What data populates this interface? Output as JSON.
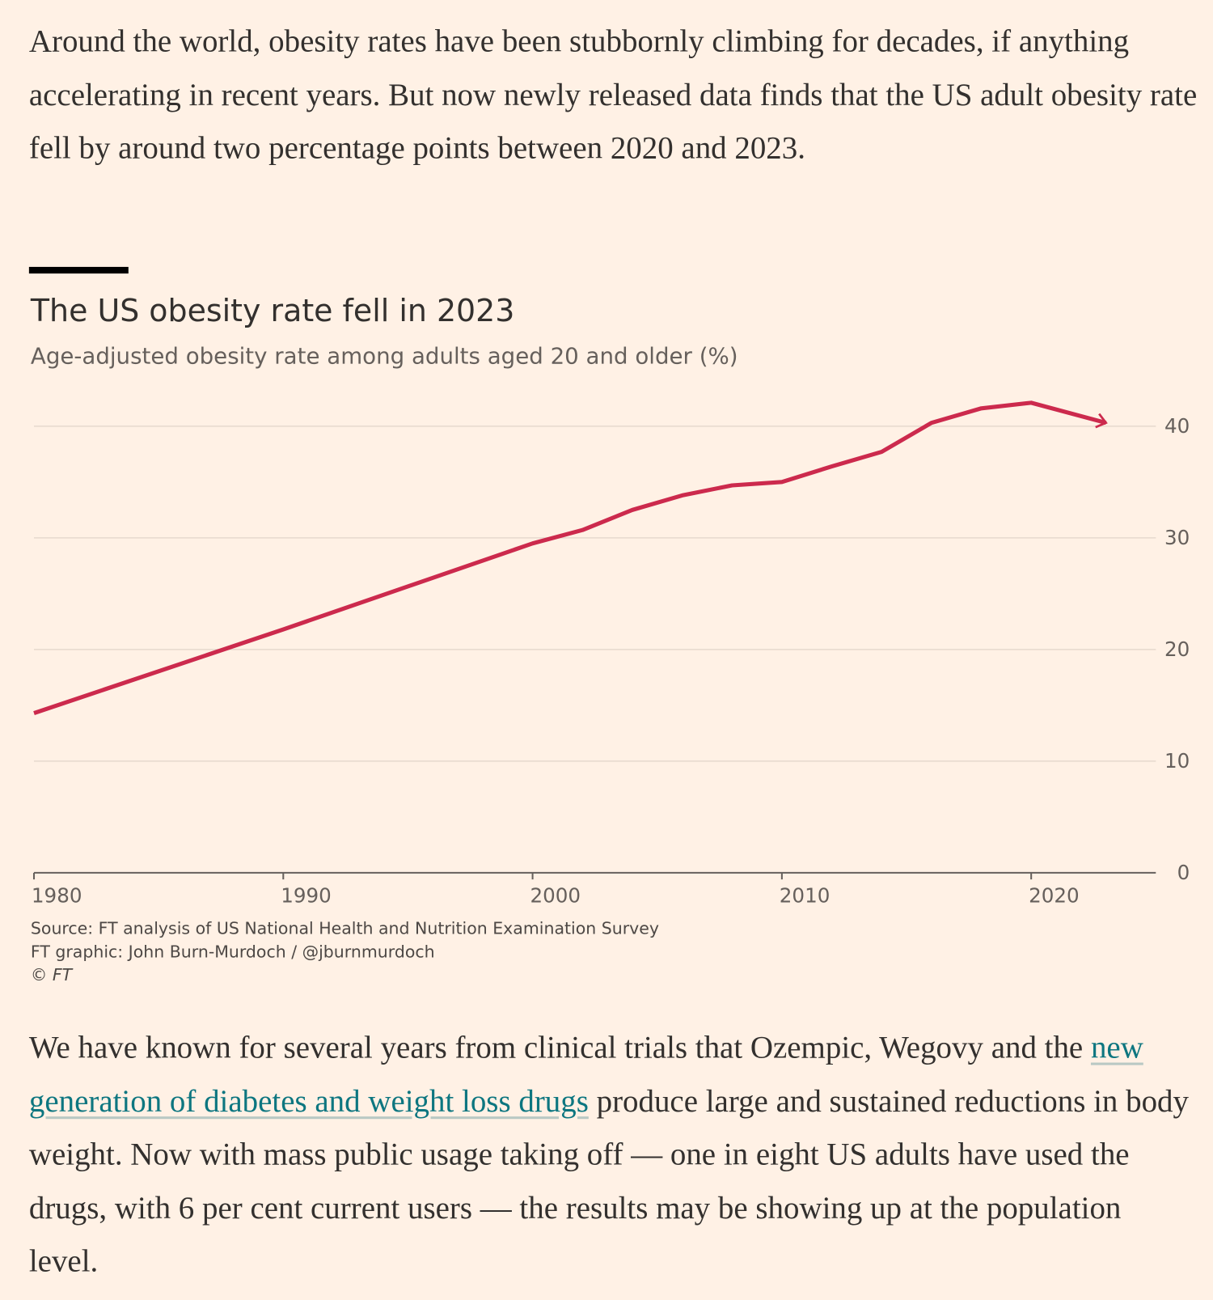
{
  "article": {
    "intro": "Around the world, obesity rates have been stubbornly climbing for decades, if anything accelerating in recent years. But now newly released data finds that the US adult obesity rate fell by around two percentage points between 2020 and 2023.",
    "body_before": "We have known for several years from clinical trials that Ozempic, Wegovy and the ",
    "body_link": "new generation of diabetes and weight loss drugs",
    "body_after": " produce large and sustained reductions in body weight. Now with mass public usage taking off — one in eight US adults have used the drugs, with 6 per cent current users — the results may be showing up at the population level."
  },
  "chart_data": {
    "type": "line",
    "title": "The US obesity rate fell in 2023",
    "subtitle": "Age-adjusted obesity rate among adults aged 20 and older (%)",
    "x": [
      1980,
      1990,
      2000,
      2002,
      2004,
      2006,
      2008,
      2010,
      2012,
      2014,
      2016,
      2018,
      2020,
      2023
    ],
    "values": [
      14.3,
      21.8,
      29.5,
      30.7,
      32.5,
      33.8,
      34.7,
      35.0,
      36.4,
      37.7,
      40.3,
      41.6,
      42.1,
      40.3
    ],
    "color": "#cc2a4d",
    "xlim": [
      1980,
      2025
    ],
    "ylim": [
      0,
      42.5
    ],
    "xticks": [
      1980,
      1990,
      2000,
      2010,
      2020
    ],
    "yticks": [
      0,
      10,
      20,
      30,
      40
    ],
    "grid": true,
    "source": "Source: FT analysis of US National Health and Nutrition Examination Survey",
    "credit": "FT graphic: John Burn-Murdoch / @jburnmurdoch",
    "copyright": "© FT"
  }
}
